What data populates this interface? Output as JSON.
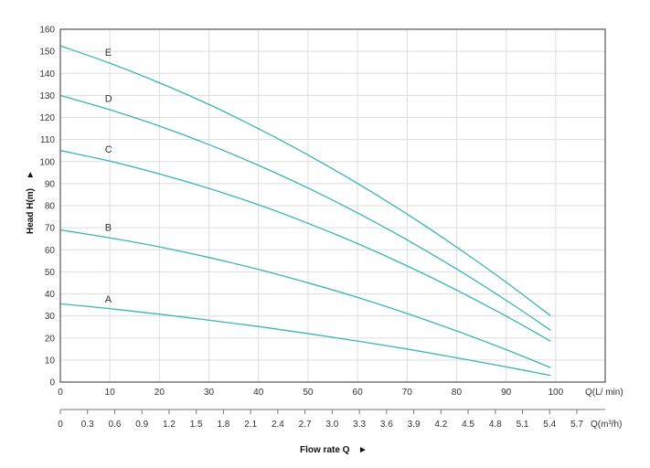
{
  "chart_data": {
    "type": "line",
    "title": "",
    "xlabel": "Flow rate Q",
    "xlabel_marker": "►",
    "ylabel": "Head H(m)",
    "ylabel_marker": "►",
    "x_unit_label": "Q(L/ min)",
    "x2_unit_label": "Q(m³/h)",
    "xlim": [
      0,
      110
    ],
    "ylim": [
      0,
      160
    ],
    "grid": true,
    "x_ticks": [
      0,
      10,
      20,
      30,
      40,
      50,
      60,
      70,
      80,
      90,
      100
    ],
    "y_ticks": [
      0,
      10,
      20,
      30,
      40,
      50,
      60,
      70,
      80,
      90,
      100,
      110,
      120,
      130,
      140,
      150,
      160
    ],
    "x2_ticks": [
      "0",
      "0.3",
      "0.6",
      "0.9",
      "1.2",
      "1.5",
      "1.8",
      "2.1",
      "2.4",
      "2.7",
      "3.0",
      "3.3",
      "3.6",
      "3.9",
      "4.2",
      "4.5",
      "4.8",
      "5.1",
      "5.4",
      "5.7"
    ],
    "line_color": "#3bb5b0",
    "x": [
      0,
      10,
      20,
      30,
      40,
      50,
      60,
      70,
      80,
      90,
      99
    ],
    "series": [
      {
        "name": "E",
        "values": [
          152.5,
          144.6,
          135.7,
          125.9,
          114.9,
          103.0,
          90.1,
          76.2,
          61.2,
          45.3,
          30.0
        ],
        "label_at": [
          9,
          148
        ]
      },
      {
        "name": "D",
        "values": [
          130.0,
          123.5,
          116.1,
          107.7,
          98.3,
          88.0,
          76.7,
          64.5,
          51.3,
          37.1,
          23.5
        ],
        "label_at": [
          9,
          127
        ]
      },
      {
        "name": "C",
        "values": [
          105.0,
          100.2,
          94.4,
          87.8,
          80.4,
          72.0,
          62.8,
          52.7,
          41.7,
          29.9,
          18.5
        ],
        "label_at": [
          9,
          104
        ]
      },
      {
        "name": "B",
        "values": [
          69.0,
          65.4,
          61.3,
          56.5,
          51.1,
          45.0,
          38.4,
          31.1,
          23.2,
          14.7,
          6.5
        ],
        "label_at": [
          9,
          68.5
        ]
      },
      {
        "name": "A",
        "values": [
          35.5,
          33.3,
          30.8,
          28.1,
          25.2,
          22.0,
          18.6,
          15.0,
          11.0,
          6.9,
          3.0
        ],
        "label_at": [
          9,
          36
        ]
      }
    ]
  }
}
